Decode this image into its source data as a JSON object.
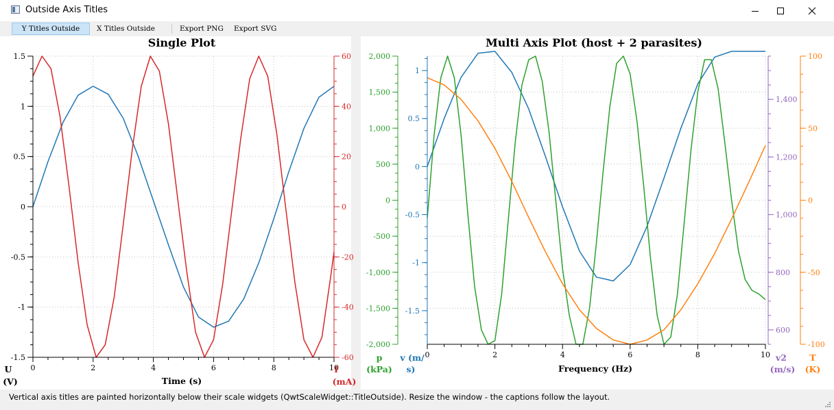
{
  "window": {
    "title": "Outside Axis Titles",
    "icon": "app-window-icon",
    "controls": {
      "minimize": "minimize-icon",
      "maximize": "maximize-icon",
      "close": "close-icon"
    }
  },
  "toolbar": {
    "items": [
      {
        "label": "Y Titles Outside",
        "active": true
      },
      {
        "label": "X Titles Outside",
        "active": false
      },
      {
        "label": "Export PNG",
        "active": false
      },
      {
        "label": "Export SVG",
        "active": false
      }
    ]
  },
  "status": {
    "text": "Vertical axis titles are painted horizontally below their scale widgets (QwtScaleWidget::TitleOutside). Resize the window - the captions follow the layout."
  },
  "colors": {
    "blue": "#1f77b4",
    "red": "#d62728",
    "green": "#2ca02c",
    "orange": "#ff7f0e",
    "purple": "#9467bd",
    "active_tab": "#cce4f7"
  },
  "chart_data": [
    {
      "type": "line",
      "title": "Single Plot",
      "xlabel": "Time (s)",
      "xlim": [
        0,
        10
      ],
      "x_ticks": [
        "0",
        "2",
        "4",
        "6",
        "8",
        "10"
      ],
      "grid": true,
      "axes": [
        {
          "id": "y-left",
          "title_lines": [
            "U",
            "(V)"
          ],
          "ylim": [
            -1.5,
            1.5
          ],
          "ticks": [
            -1.5,
            -1,
            -0.5,
            0,
            0.5,
            1,
            1.5
          ],
          "tick_labels": [
            "-1.5",
            "-1",
            "-0.5",
            "0",
            "0.5",
            "1",
            "1.5"
          ],
          "color": "#000000"
        },
        {
          "id": "y-right",
          "title_lines": [
            "I",
            "(mA)"
          ],
          "ylim": [
            -60,
            60
          ],
          "ticks": [
            -60,
            -40,
            -20,
            0,
            20,
            40,
            60
          ],
          "tick_labels": [
            "-60",
            "-40",
            "-20",
            "0",
            "20",
            "40",
            "60"
          ],
          "color": "#d62728"
        }
      ],
      "series": [
        {
          "axis": "y-left",
          "color": "#1f77b4",
          "x": [
            0,
            0.5,
            1,
            1.5,
            2,
            2.5,
            3,
            3.5,
            4,
            4.5,
            5,
            5.5,
            6,
            6.5,
            7,
            7.5,
            8,
            8.5,
            9,
            9.5,
            10
          ],
          "y": [
            0,
            0.45,
            0.84,
            1.11,
            1.2,
            1.12,
            0.88,
            0.5,
            0.06,
            -0.38,
            -0.8,
            -1.1,
            -1.2,
            -1.14,
            -0.92,
            -0.56,
            -0.12,
            0.35,
            0.78,
            1.09,
            1.2
          ]
        },
        {
          "axis": "y-right",
          "color": "#d62728",
          "x": [
            0,
            0.3,
            0.6,
            0.9,
            1.2,
            1.5,
            1.8,
            2.1,
            2.4,
            2.7,
            3.0,
            3.3,
            3.6,
            3.9,
            4.2,
            4.5,
            4.8,
            5.1,
            5.4,
            5.7,
            6.0,
            6.3,
            6.6,
            6.9,
            7.2,
            7.5,
            7.8,
            8.1,
            8.4,
            8.7,
            9.0,
            9.3,
            9.6,
            9.9,
            10
          ],
          "y": [
            52,
            60,
            55,
            36,
            8,
            -22,
            -47,
            -60,
            -55,
            -36,
            -7,
            23,
            48,
            60,
            54,
            33,
            4,
            -25,
            -50,
            -60,
            -53,
            -31,
            -2,
            27,
            51,
            60,
            52,
            29,
            -1,
            -30,
            -53,
            -60,
            -52,
            -27,
            -18
          ]
        }
      ]
    },
    {
      "type": "line",
      "title": "Multi Axis Plot (host + 2 parasites)",
      "xlabel": "Frequency (Hz)",
      "xlim": [
        0,
        10
      ],
      "x_ticks": [
        "0",
        "2",
        "4",
        "6",
        "8",
        "10"
      ],
      "grid": true,
      "axes": [
        {
          "id": "p",
          "title_lines": [
            "p",
            "(kPa)"
          ],
          "ylim": [
            -2000,
            2000
          ],
          "ticks": [
            -2000,
            -1500,
            -1000,
            -500,
            0,
            500,
            1000,
            1500,
            2000
          ],
          "tick_labels": [
            "-2,000",
            "-1,500",
            "-1,000",
            "-500",
            "0",
            "500",
            "1,000",
            "1,500",
            "2,000"
          ],
          "color": "#2ca02c"
        },
        {
          "id": "v",
          "title_lines": [
            "v (m/",
            "s)"
          ],
          "ylim": [
            -1.85,
            1.15
          ],
          "ticks": [
            -1.5,
            -1,
            -0.5,
            0,
            0.5,
            1
          ],
          "tick_labels": [
            "-1.5",
            "-1",
            "-0.5",
            "0",
            "0.5",
            "1"
          ],
          "color": "#1f77b4"
        },
        {
          "id": "v2",
          "title_lines": [
            "v2",
            "(m/s)"
          ],
          "ylim": [
            550,
            1550
          ],
          "ticks": [
            600,
            800,
            1000,
            1200,
            1400
          ],
          "tick_labels": [
            "600",
            "800",
            "1,000",
            "1,200",
            "1,400"
          ],
          "color": "#9467bd"
        },
        {
          "id": "T",
          "title_lines": [
            "T",
            "(K)"
          ],
          "ylim": [
            -100,
            100
          ],
          "ticks": [
            -100,
            -50,
            0,
            50,
            100
          ],
          "tick_labels": [
            "-100",
            "-50",
            "0",
            "50",
            "100"
          ],
          "color": "#ff7f0e"
        }
      ],
      "series": [
        {
          "axis": "v",
          "color": "#1f77b4",
          "x": [
            0,
            0.5,
            1,
            1.5,
            2,
            2.5,
            3,
            3.5,
            4,
            4.5,
            5,
            5.5,
            6,
            6.5,
            7,
            7.5,
            8,
            8.5,
            9,
            9.5,
            10
          ],
          "y": [
            0,
            0.5,
            0.93,
            1.18,
            1.2,
            0.98,
            0.6,
            0.1,
            -0.42,
            -0.88,
            -1.15,
            -1.19,
            -1.02,
            -0.62,
            -0.12,
            0.4,
            0.86,
            1.14,
            1.2,
            1.2,
            1.2
          ]
        },
        {
          "axis": "p",
          "color": "#2ca02c",
          "x": [
            0,
            0.2,
            0.4,
            0.6,
            0.8,
            1.0,
            1.2,
            1.4,
            1.6,
            1.8,
            2.0,
            2.2,
            2.4,
            2.6,
            2.8,
            3.0,
            3.2,
            3.4,
            3.6,
            3.8,
            4.0,
            4.2,
            4.4,
            4.6,
            4.8,
            5.0,
            5.2,
            5.4,
            5.6,
            5.8,
            6.0,
            6.2,
            6.4,
            6.6,
            6.8,
            7.0,
            7.2,
            7.4,
            7.6,
            7.8,
            8.0,
            8.2,
            8.4,
            8.6,
            8.8,
            9.0,
            9.2,
            9.4,
            9.6,
            9.8,
            10.0
          ],
          "y": [
            -250,
            900,
            1700,
            2000,
            1700,
            900,
            -200,
            -1200,
            -1800,
            -2000,
            -1950,
            -1300,
            -250,
            800,
            1600,
            1950,
            2000,
            1650,
            950,
            0,
            -950,
            -1600,
            -2000,
            -2000,
            -1500,
            -600,
            400,
            1300,
            1900,
            2000,
            1750,
            1100,
            200,
            -800,
            -1600,
            -2000,
            -1900,
            -1300,
            -300,
            700,
            1500,
            1950,
            1950,
            1550,
            800,
            0,
            -700,
            -1100,
            -1250,
            -1300,
            -1380
          ]
        },
        {
          "axis": "T",
          "color": "#ff7f0e",
          "x": [
            0,
            0.5,
            1,
            1.5,
            2,
            2.5,
            3,
            3.5,
            4,
            4.5,
            5,
            5.5,
            6,
            6.5,
            7,
            7.5,
            8,
            8.5,
            9,
            9.5,
            10
          ],
          "y": [
            85,
            80,
            70,
            55,
            36,
            13,
            -12,
            -36,
            -58,
            -76,
            -89,
            -97,
            -100,
            -97,
            -90,
            -76,
            -58,
            -37,
            -13,
            12,
            38
          ]
        }
      ]
    }
  ]
}
